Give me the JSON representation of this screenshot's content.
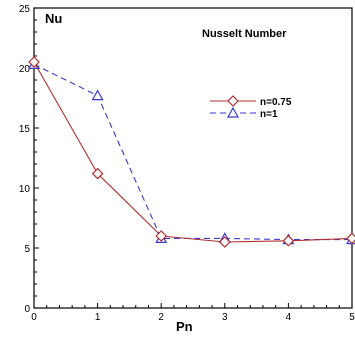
{
  "chart_data": {
    "type": "line",
    "title": "Nusselt Number",
    "xlabel": "Pn",
    "ylabel": "Nu",
    "xlim": [
      0,
      5
    ],
    "ylim": [
      0,
      25
    ],
    "x_ticks": [
      0,
      1,
      2,
      3,
      4,
      5
    ],
    "y_ticks": [
      0,
      5,
      10,
      15,
      20,
      25
    ],
    "legend_position": "top-right",
    "grid": false,
    "series": [
      {
        "name": "n=0.75",
        "color": "#b03030",
        "line_style": "solid",
        "marker": "diamond",
        "x": [
          0,
          1,
          2,
          3,
          4,
          5
        ],
        "y": [
          20.5,
          11.2,
          6.0,
          5.5,
          5.6,
          5.8
        ]
      },
      {
        "name": "n=1",
        "color": "#3a3ad0",
        "line_style": "dashed",
        "marker": "triangle",
        "x": [
          0,
          1,
          2,
          3,
          4,
          5
        ],
        "y": [
          20.3,
          17.7,
          5.8,
          5.8,
          5.7,
          5.7
        ]
      }
    ]
  }
}
